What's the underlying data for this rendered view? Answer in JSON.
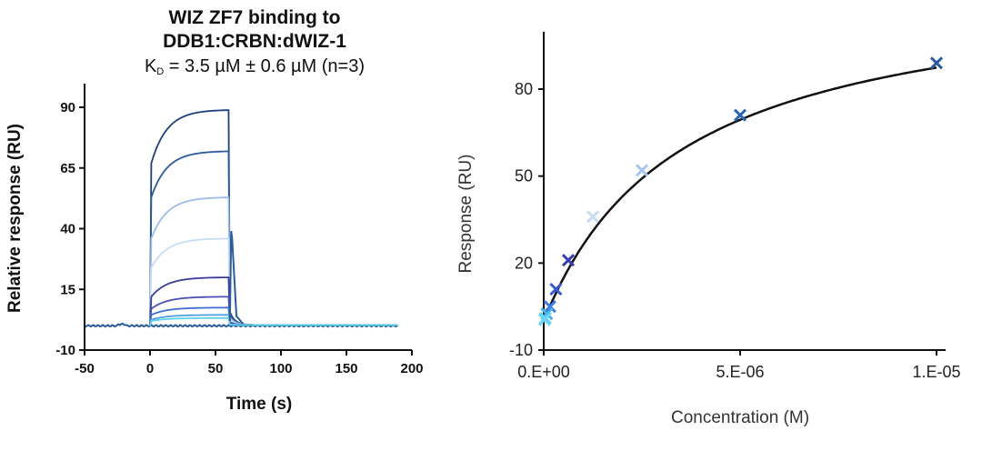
{
  "chart_data": [
    {
      "type": "line",
      "title": "WIZ ZF7 binding to",
      "title_line2": "DDB1:CRBN:dWIZ-1",
      "subtitle_prefix": "K",
      "subtitle_sub": "D",
      "subtitle_rest": " = 3.5 µM ± 0.6 µM (n=3)",
      "xlabel": "Time (s)",
      "ylabel": "Relative response (RU)",
      "xlim": [
        -50,
        200
      ],
      "ylim": [
        -10,
        100
      ],
      "xticks": [
        "-50",
        "0",
        "50",
        "100",
        "150",
        "200"
      ],
      "yticks": [
        "-10",
        "15",
        "40",
        "65",
        "90"
      ],
      "grid": false,
      "legend": "none",
      "association_end_s": 60,
      "series": [
        {
          "color": "#1f3f7a",
          "steady": 89,
          "initial": 67
        },
        {
          "color": "#2c5a9a",
          "steady": 72,
          "initial": 53
        },
        {
          "color": "#9dbbe6",
          "steady": 53,
          "initial": 36
        },
        {
          "color": "#c9dcf4",
          "steady": 36,
          "initial": 24
        },
        {
          "color": "#3b3d9a",
          "steady": 20,
          "initial": 12
        },
        {
          "color": "#4c4fb5",
          "steady": 12,
          "initial": 7
        },
        {
          "color": "#3f6fd0",
          "steady": 7.5,
          "initial": 4.5
        },
        {
          "color": "#4fa0e0",
          "steady": 4.5,
          "initial": 2.5
        },
        {
          "color": "#5ed0e8",
          "steady": 3.2,
          "initial": 2.0
        }
      ],
      "spike": {
        "x": 62,
        "y": 39
      },
      "baseline": 0
    },
    {
      "type": "scatter",
      "xlabel": "Concentration (M)",
      "ylabel": "Response (RU)",
      "xlim": [
        0,
        1.05e-05
      ],
      "ylim": [
        -10,
        105
      ],
      "xticks": [
        {
          "value": 0,
          "label": "0.E+00"
        },
        {
          "value": 5e-06,
          "label": "5.E-06"
        },
        {
          "value": 1e-05,
          "label": "1.E-05"
        }
      ],
      "yticks": [
        "-10",
        "20",
        "50",
        "80"
      ],
      "grid": false,
      "legend": "none",
      "points": [
        {
          "x": 1e-05,
          "y": 89,
          "color": "#2a5a9e"
        },
        {
          "x": 5e-06,
          "y": 71,
          "color": "#2a64b4"
        },
        {
          "x": 2.5e-06,
          "y": 52,
          "color": "#a6c6ec"
        },
        {
          "x": 1.25e-06,
          "y": 36,
          "color": "#c8dcf4"
        },
        {
          "x": 6.25e-07,
          "y": 21,
          "color": "#3a3dba"
        },
        {
          "x": 3.1e-07,
          "y": 11,
          "color": "#3a5ad2"
        },
        {
          "x": 1.6e-07,
          "y": 5,
          "color": "#3f7ee0"
        },
        {
          "x": 7.8e-08,
          "y": 2.5,
          "color": "#4bb0e8"
        },
        {
          "x": 3.9e-08,
          "y": 1.0,
          "color": "#5ed0f0"
        },
        {
          "x": 2e-08,
          "y": 0.5,
          "color": "#6ad8f4"
        }
      ],
      "fit": {
        "rmax": 118,
        "kd": 3.5e-06,
        "color": "#111111"
      }
    }
  ]
}
